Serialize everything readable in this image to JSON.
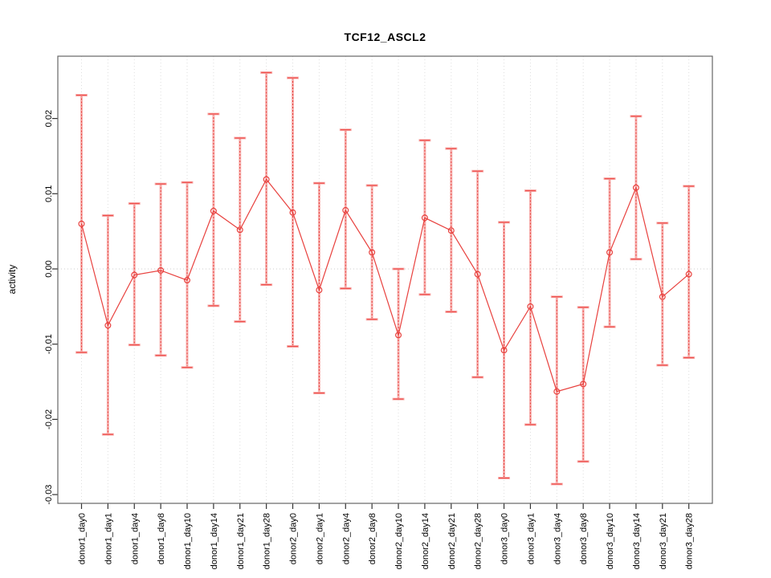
{
  "window": {
    "background": "#ffffff"
  },
  "chart_data": {
    "type": "line",
    "subtype": "points-with-error-bars",
    "title": "TCF12_ASCL2",
    "xlabel": "",
    "ylabel": "activity",
    "ylim": [
      -0.0315,
      0.0285
    ],
    "yticks": [
      -0.03,
      -0.02,
      -0.01,
      0.0,
      0.01,
      0.02
    ],
    "grid": "vertical dotted gridline at each category; horizontal dotted line at y=0 only",
    "legend_position": "none",
    "marker": "open-circle",
    "categories": [
      "donor1_day0",
      "donor1_day1",
      "donor1_day4",
      "donor1_day8",
      "donor1_day10",
      "donor1_day14",
      "donor1_day21",
      "donor1_day28",
      "donor2_day0",
      "donor2_day1",
      "donor2_day4",
      "donor2_day8",
      "donor2_day10",
      "donor2_day14",
      "donor2_day21",
      "donor2_day28",
      "donor3_day0",
      "donor3_day1",
      "donor3_day4",
      "donor3_day8",
      "donor3_day10",
      "donor3_day14",
      "donor3_day21",
      "donor3_day28"
    ],
    "series": [
      {
        "name": "activity",
        "values": [
          0.006,
          -0.0075,
          -0.0008,
          -0.0002,
          -0.0015,
          0.0077,
          0.0052,
          0.0119,
          0.0075,
          -0.0028,
          0.0078,
          0.0022,
          -0.0088,
          0.0068,
          0.0051,
          -0.0007,
          -0.0108,
          -0.005,
          -0.0163,
          -0.0153,
          0.0022,
          0.0108,
          -0.0037,
          -0.0007
        ],
        "lower": [
          -0.0111,
          -0.022,
          -0.0101,
          -0.0115,
          -0.0131,
          -0.0049,
          -0.007,
          -0.0021,
          -0.0103,
          -0.0165,
          -0.0026,
          -0.0067,
          -0.0173,
          -0.0034,
          -0.0057,
          -0.0144,
          -0.0278,
          -0.0207,
          -0.0286,
          -0.0256,
          -0.0077,
          0.0013,
          -0.0128,
          -0.0118
        ],
        "upper": [
          0.0231,
          0.0071,
          0.0087,
          0.0113,
          0.0115,
          0.0206,
          0.0174,
          0.0261,
          0.0254,
          0.0114,
          0.0185,
          0.0111,
          0.0,
          0.0171,
          0.016,
          0.013,
          0.0062,
          0.0104,
          -0.0037,
          -0.0051,
          0.012,
          0.0203,
          0.0061,
          0.011
        ]
      }
    ],
    "colors": {
      "point_line": "#e8413e",
      "error_band": "#f7b3b1",
      "error_cap": "#ef514e",
      "gridline": "#dedede",
      "zero_line": "#cccccc",
      "box_border": "#666666",
      "tick": "#333333",
      "text": "#000000"
    }
  }
}
